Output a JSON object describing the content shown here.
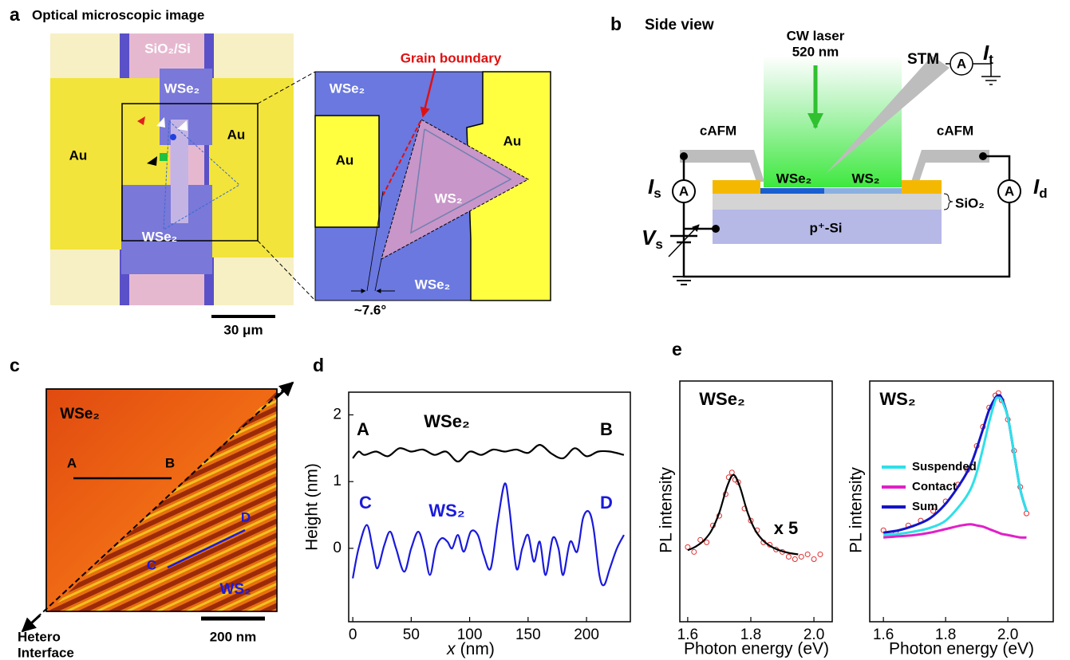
{
  "panel_a": {
    "letter": "a",
    "title": "Optical microscopic image",
    "substrate": "SiO₂/Si",
    "wse2_top": "WSe₂",
    "wse2_bottom": "WSe₂",
    "au_left": "Au",
    "au_right": "Au",
    "scale_bar": "30 μm"
  },
  "panel_a_zoom": {
    "grain_boundary": "Grain boundary",
    "wse2_top": "WSe₂",
    "wse2_bottom": "WSe₂",
    "au_left": "Au",
    "au_right": "Au",
    "ws2": "WS₂",
    "angle": "~7.6°"
  },
  "panel_b": {
    "letter": "b",
    "title": "Side view",
    "laser": [
      "CW laser",
      "520 nm"
    ],
    "stm": "STM",
    "cafm_left": "cAFM",
    "cafm_right": "cAFM",
    "wse2": "WSe₂",
    "ws2": "WS₂",
    "sio2": "SiO₂",
    "si": "p⁺-Si",
    "ammeter": [
      "A",
      "A",
      "A"
    ],
    "current_t": {
      "symbol": "I",
      "sub": "t"
    },
    "current_s": {
      "symbol": "I",
      "sub": "s"
    },
    "current_d": {
      "symbol": "I",
      "sub": "d"
    },
    "voltage": {
      "symbol": "V",
      "sub": "s"
    }
  },
  "panel_c": {
    "letter": "c",
    "material_top": "WSe₂",
    "material_bottom": "WS₂",
    "point_a": "A",
    "point_b": "B",
    "point_c": "C",
    "point_d": "D",
    "interface": [
      "Hetero",
      "Interface"
    ],
    "scale_bar": "200 nm"
  },
  "panel_d_letter": "d",
  "panel_e_letter": "e",
  "chart_data": [
    {
      "type": "line",
      "ylabel": "Height (nm)",
      "xlabel": {
        "var": "x",
        "unit": "(nm)"
      },
      "xlim": [
        -3.5,
        237.5
      ],
      "xticks": [
        0,
        50,
        100,
        150,
        200
      ],
      "ylim": [
        -1.1,
        2.34
      ],
      "yticks": [
        0,
        1,
        2
      ],
      "annotations": [
        {
          "text": "A",
          "color": "#000000"
        },
        {
          "text": "WSe₂",
          "color": "#000000"
        },
        {
          "text": "B",
          "color": "#000000"
        },
        {
          "text": "C",
          "color": "#1a1adc"
        },
        {
          "text": "WS₂",
          "color": "#1a1adc"
        },
        {
          "text": "D",
          "color": "#1a1adc"
        }
      ],
      "series": [
        {
          "color": "#000000",
          "x": [
            0,
            5,
            10,
            20,
            30,
            40,
            50,
            60,
            70,
            80,
            90,
            100,
            110,
            120,
            130,
            140,
            150,
            160,
            170,
            180,
            190,
            200,
            210,
            220,
            232
          ],
          "values": [
            1.35,
            1.45,
            1.4,
            1.45,
            1.38,
            1.5,
            1.45,
            1.48,
            1.4,
            1.45,
            1.3,
            1.45,
            1.4,
            1.48,
            1.45,
            1.48,
            1.43,
            1.55,
            1.42,
            1.35,
            1.5,
            1.38,
            1.45,
            1.45,
            1.4
          ]
        },
        {
          "color": "#1a1adc",
          "x": [
            0,
            5,
            12,
            17,
            21,
            27,
            32,
            37,
            44,
            50,
            56,
            61,
            66,
            71,
            76,
            81,
            85,
            90,
            95,
            101,
            107,
            112,
            118,
            124,
            130,
            134,
            140,
            145,
            150,
            155,
            160,
            165,
            171,
            176,
            180,
            186,
            192,
            197,
            202,
            206,
            211,
            215,
            220,
            226,
            232
          ],
          "values": [
            -0.45,
            0,
            0.35,
            0,
            -0.3,
            0.05,
            0.25,
            0,
            -0.35,
            0,
            0.25,
            0,
            -0.4,
            0,
            0.15,
            0.1,
            0,
            0.2,
            -0.05,
            0.25,
            0.2,
            -0.1,
            -0.3,
            0.4,
            0.97,
            0.6,
            -0.3,
            0,
            0.2,
            -0.2,
            0.1,
            -0.4,
            0.15,
            0,
            -0.4,
            0.1,
            -0.05,
            0.45,
            0.55,
            0.3,
            -0.4,
            -0.55,
            -0.3,
            0,
            0.2
          ]
        }
      ]
    },
    {
      "type": "line",
      "ylabel": "PL intensity",
      "xlabel": "Photon energy (eV)",
      "xlim": [
        1.575,
        2.058
      ],
      "xticks": [
        1.6,
        1.8,
        {
          "value": 2,
          "label": "2.0"
        }
      ],
      "ylim": [
        0,
        1
      ],
      "annotations": [
        {
          "text": "WSe₂",
          "color": "#000000"
        },
        {
          "text": "x 5",
          "color": "#000000"
        }
      ],
      "series": [
        {
          "color": "#e03030",
          "marker": "circle",
          "x": [
            1.6,
            1.62,
            1.64,
            1.66,
            1.68,
            1.7,
            1.72,
            1.73,
            1.74,
            1.75,
            1.76,
            1.78,
            1.8,
            1.82,
            1.84,
            1.86,
            1.88,
            1.9,
            1.92,
            1.94,
            1.96,
            1.98,
            2.0,
            2.02
          ],
          "values": [
            0.31,
            0.29,
            0.34,
            0.33,
            0.4,
            0.44,
            0.53,
            0.6,
            0.62,
            0.59,
            0.58,
            0.47,
            0.42,
            0.38,
            0.33,
            0.32,
            0.3,
            0.29,
            0.27,
            0.26,
            0.27,
            0.28,
            0.26,
            0.28
          ]
        },
        {
          "color": "#000000",
          "x": [
            1.6,
            1.625,
            1.65,
            1.675,
            1.7,
            1.725,
            1.745,
            1.765,
            1.79,
            1.815,
            1.84,
            1.865,
            1.89,
            1.92,
            1.95
          ],
          "values": [
            0.297,
            0.312,
            0.336,
            0.378,
            0.453,
            0.562,
            0.61,
            0.562,
            0.453,
            0.378,
            0.336,
            0.312,
            0.297,
            0.286,
            0.28
          ]
        }
      ]
    },
    {
      "type": "line",
      "ylabel": "PL intensity",
      "xlabel": "Photon energy (eV)",
      "xlim": [
        1.556,
        2.146
      ],
      "xticks": [
        1.6,
        1.8,
        {
          "value": 2,
          "label": "2.0"
        }
      ],
      "ylim": [
        0,
        1
      ],
      "annotations": [
        {
          "text": "WS₂",
          "color": "#000000"
        }
      ],
      "series": [
        {
          "color": "#e03030",
          "marker": "circle",
          "x": [
            1.6,
            1.64,
            1.68,
            1.72,
            1.76,
            1.8,
            1.84,
            1.87,
            1.9,
            1.92,
            1.94,
            1.96,
            1.97,
            1.98,
            2.0,
            2.02,
            2.04,
            2.06
          ],
          "values": [
            0.38,
            0.37,
            0.4,
            0.42,
            0.46,
            0.5,
            0.57,
            0.63,
            0.73,
            0.81,
            0.89,
            0.94,
            0.95,
            0.92,
            0.84,
            0.71,
            0.56,
            0.45
          ]
        },
        {
          "name": "Sum",
          "color": "#1414c8",
          "x": [
            1.6,
            1.65,
            1.7,
            1.75,
            1.8,
            1.85,
            1.88,
            1.9,
            1.92,
            1.94,
            1.96,
            1.97,
            1.98,
            2.0,
            2.02,
            2.04,
            2.06
          ],
          "values": [
            0.37,
            0.38,
            0.4,
            0.43,
            0.49,
            0.58,
            0.65,
            0.72,
            0.8,
            0.88,
            0.93,
            0.94,
            0.93,
            0.85,
            0.7,
            0.55,
            0.46
          ]
        },
        {
          "name": "Suspended",
          "color": "#2ee0e8",
          "x": [
            1.6,
            1.65,
            1.7,
            1.75,
            1.8,
            1.85,
            1.88,
            1.9,
            1.92,
            1.94,
            1.96,
            1.97,
            1.98,
            2.0,
            2.02,
            2.04,
            2.06
          ],
          "values": [
            0.36,
            0.365,
            0.375,
            0.39,
            0.42,
            0.49,
            0.55,
            0.62,
            0.72,
            0.83,
            0.92,
            0.93,
            0.92,
            0.85,
            0.7,
            0.55,
            0.46
          ]
        },
        {
          "name": "Contact",
          "color": "#e020c8",
          "x": [
            1.6,
            1.65,
            1.7,
            1.75,
            1.8,
            1.85,
            1.88,
            1.9,
            1.92,
            1.94,
            1.96,
            1.97,
            1.98,
            2.0,
            2.02,
            2.04,
            2.06
          ],
          "values": [
            0.35,
            0.355,
            0.36,
            0.37,
            0.385,
            0.4,
            0.405,
            0.4,
            0.395,
            0.385,
            0.375,
            0.37,
            0.365,
            0.36,
            0.355,
            0.35,
            0.35
          ]
        }
      ],
      "legend_order": [
        "Suspended",
        "Contact",
        "Sum"
      ]
    }
  ]
}
